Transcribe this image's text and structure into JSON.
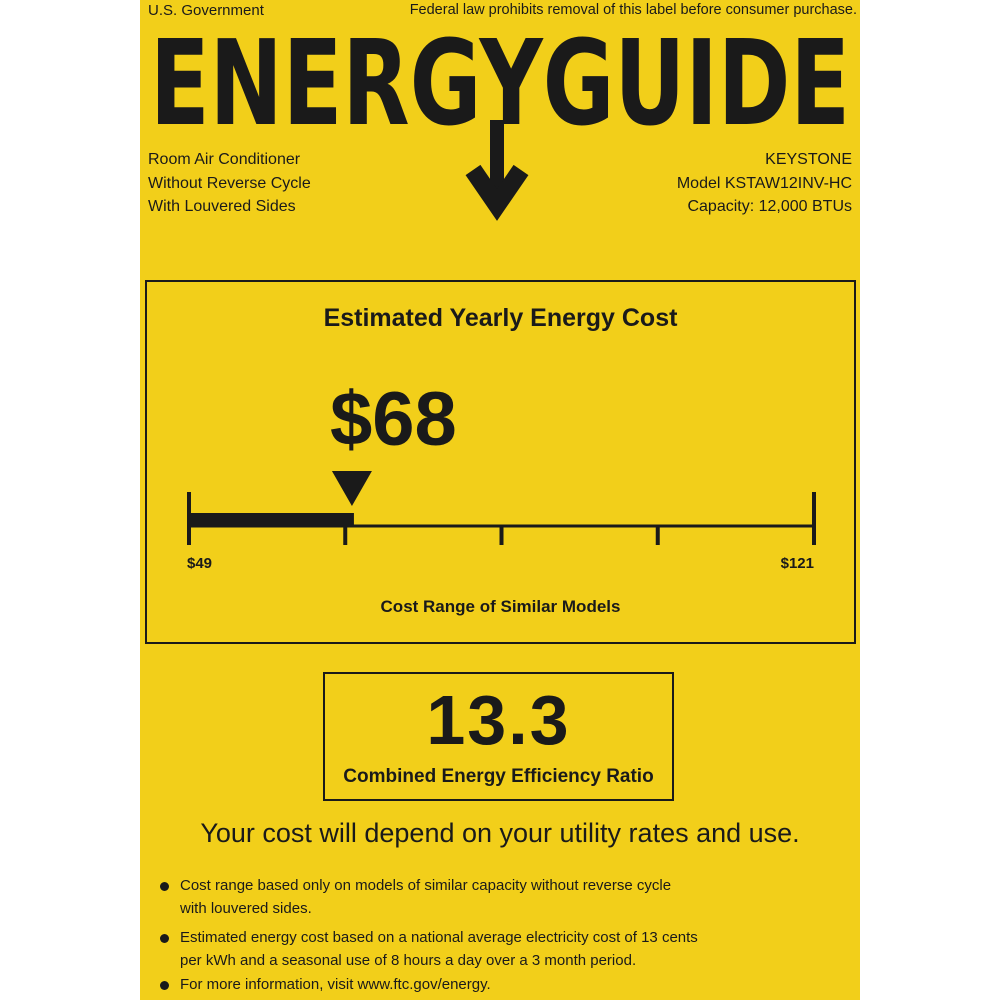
{
  "header": {
    "issuer": "U.S. Government",
    "notice": "Federal law prohibits removal of this label before consumer purchase.",
    "title": "ENERGYGUIDE"
  },
  "product": {
    "lines": [
      "Room Air Conditioner",
      "Without Reverse Cycle",
      "With Louvered Sides"
    ]
  },
  "manufacturer": {
    "brand": "KEYSTONE",
    "model": "Model KSTAW12INV-HC",
    "capacity": "Capacity: 12,000 BTUs"
  },
  "cost": {
    "heading": "Estimated Yearly Energy Cost",
    "value": "$68",
    "value_number": 68,
    "range_min": 49,
    "range_max": 121,
    "range_min_label": "$49",
    "range_max_label": "$121",
    "range_caption": "Cost Range of Similar Models"
  },
  "efficiency": {
    "value": "13.3",
    "label": "Combined Energy Efficiency Ratio"
  },
  "disclaimer": "Your cost will depend on your utility rates and use.",
  "bullets": [
    "Cost range based only on models of similar capacity without reverse cycle with louvered sides.",
    "Estimated energy cost based on a national average electricity cost of 13 cents per kWh and a seasonal use of 8 hours a day over a 3 month period.",
    "For more information, visit www.ftc.gov/energy."
  ],
  "colors": {
    "label_background": "#f2cf1a",
    "ink": "#1a1a1a"
  }
}
